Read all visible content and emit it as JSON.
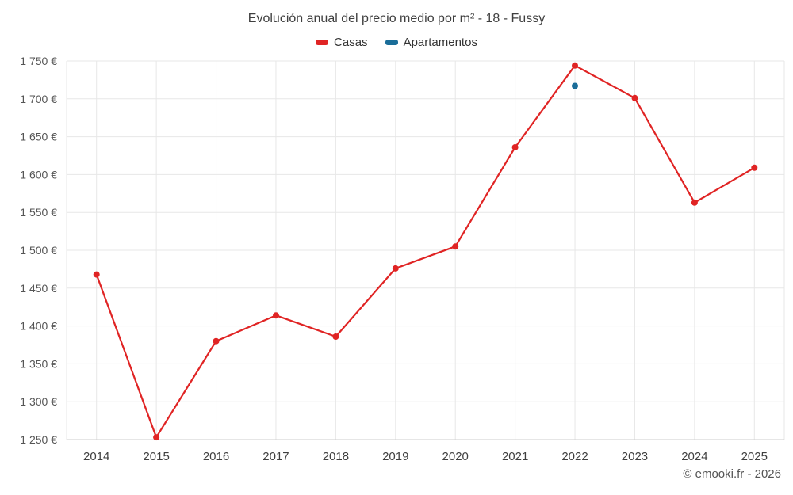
{
  "chart_data": {
    "type": "line",
    "title": "Evolución anual del precio medio por m² - 18 - Fussy",
    "categories": [
      "2014",
      "2015",
      "2016",
      "2017",
      "2018",
      "2019",
      "2020",
      "2021",
      "2022",
      "2023",
      "2024",
      "2025"
    ],
    "series": [
      {
        "name": "Casas",
        "color": "#e02424",
        "values": [
          1468,
          1253,
          1380,
          1414,
          1386,
          1476,
          1505,
          1636,
          1744,
          1701,
          1563,
          1609
        ]
      },
      {
        "name": "Apartamentos",
        "color": "#1a6d99",
        "values": [
          null,
          null,
          null,
          null,
          null,
          null,
          null,
          null,
          1717,
          null,
          null,
          null
        ]
      }
    ],
    "ylim": [
      1250,
      1750
    ],
    "ytick_step": 50,
    "y_suffix": " €",
    "grid": true,
    "legend_position": "top",
    "credit": "© emooki.fr - 2026"
  }
}
